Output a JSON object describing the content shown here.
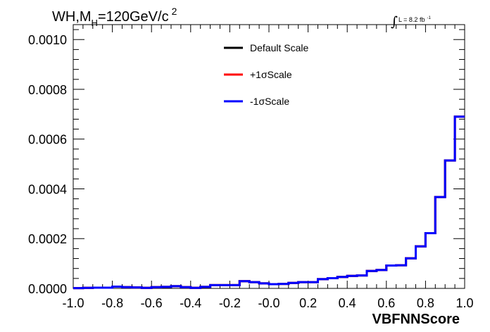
{
  "chart_data": {
    "type": "line",
    "title": "WH,M_H=120GeV/c^2",
    "title_parts": {
      "base": "WH,M",
      "sub": "H",
      "mid": "=120GeV/c",
      "sup": "2"
    },
    "luminosity": {
      "integral": "∫",
      "text": "L = 8.2 fb",
      "sup": "-1"
    },
    "xlabel": "VBFNNScore",
    "ylabel": "",
    "xlim": [
      -1.0,
      1.0
    ],
    "ylim": [
      0.0,
      0.00106
    ],
    "x_ticks": [
      "-1.0",
      "-0.8",
      "-0.6",
      "-0.4",
      "-0.2",
      "-0.0",
      "0.2",
      "0.4",
      "0.6",
      "0.8",
      "1.0"
    ],
    "y_ticks": [
      "0.0000",
      "0.0002",
      "0.0004",
      "0.0006",
      "0.0008",
      "0.0010"
    ],
    "legend_position": "top-center",
    "bin_edges": [
      -1.0,
      -0.95,
      -0.9,
      -0.85,
      -0.8,
      -0.75,
      -0.7,
      -0.65,
      -0.6,
      -0.55,
      -0.5,
      -0.45,
      -0.4,
      -0.35,
      -0.3,
      -0.25,
      -0.2,
      -0.15,
      -0.1,
      -0.05,
      0.0,
      0.05,
      0.1,
      0.15,
      0.2,
      0.25,
      0.3,
      0.35,
      0.4,
      0.45,
      0.5,
      0.55,
      0.6,
      0.65,
      0.7,
      0.75,
      0.8,
      0.85,
      0.9,
      0.95,
      1.0
    ],
    "series": [
      {
        "name": "Default Scale",
        "color": "#000000",
        "values": [
          1e-06,
          2e-06,
          3e-06,
          3e-06,
          7e-06,
          5e-06,
          4e-06,
          2e-06,
          5e-06,
          6e-06,
          9e-06,
          5e-06,
          2e-06,
          6e-06,
          1.3e-05,
          1.3e-05,
          1.3e-05,
          2.9e-05,
          2.5e-05,
          2e-05,
          1.7e-05,
          1.8e-05,
          2.2e-05,
          2.5e-05,
          2.5e-05,
          3.7e-05,
          4.1e-05,
          4.6e-05,
          5e-05,
          5.2e-05,
          7e-05,
          7.4e-05,
          9.2e-05,
          9.3e-05,
          0.000121,
          0.000169,
          0.000222,
          0.000367,
          0.000514,
          0.00069
        ]
      },
      {
        "name": "+1σScale",
        "color": "#ff0000",
        "values": [
          1e-06,
          2e-06,
          3e-06,
          3e-06,
          7e-06,
          5e-06,
          4e-06,
          2e-06,
          5e-06,
          6e-06,
          9e-06,
          5e-06,
          2e-06,
          6e-06,
          1.3e-05,
          1.3e-05,
          1.3e-05,
          2.9e-05,
          2.5e-05,
          2e-05,
          1.7e-05,
          1.8e-05,
          2.2e-05,
          2.5e-05,
          2.5e-05,
          3.7e-05,
          4.1e-05,
          4.6e-05,
          5e-05,
          5.2e-05,
          7e-05,
          7.4e-05,
          9.2e-05,
          9.3e-05,
          0.000121,
          0.000169,
          0.000222,
          0.000367,
          0.000514,
          0.00069
        ]
      },
      {
        "name": "-1σScale",
        "color": "#0000ff",
        "values": [
          1e-06,
          2e-06,
          3e-06,
          3e-06,
          7e-06,
          5e-06,
          4e-06,
          2e-06,
          5e-06,
          6e-06,
          9e-06,
          5e-06,
          2e-06,
          6e-06,
          1.3e-05,
          1.3e-05,
          1.3e-05,
          2.9e-05,
          2.5e-05,
          2e-05,
          1.7e-05,
          1.8e-05,
          2.2e-05,
          2.5e-05,
          2.5e-05,
          3.7e-05,
          4.1e-05,
          4.6e-05,
          5e-05,
          5.2e-05,
          7e-05,
          7.4e-05,
          9.2e-05,
          9.3e-05,
          0.000121,
          0.000169,
          0.000222,
          0.000367,
          0.000514,
          0.00069
        ]
      }
    ]
  }
}
